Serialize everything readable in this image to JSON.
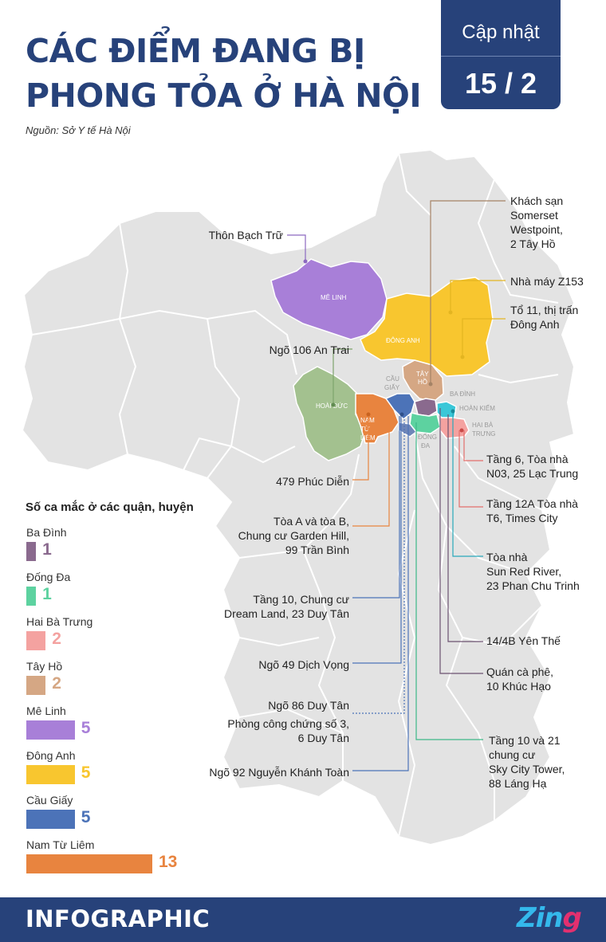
{
  "header": {
    "title_line1": "CÁC ĐIỂM ĐANG BỊ",
    "title_line2": "PHONG TỎA Ở HÀ NỘI",
    "source": "Nguồn: Sở Y tế Hà Nội",
    "badge_label": "Cập nhật",
    "badge_date": "15 / 2"
  },
  "map": {
    "districts": {
      "me_linh": "MÊ LINH",
      "dong_anh": "ĐÔNG ANH",
      "tay_ho_1": "TÂY",
      "tay_ho_2": "HỒ",
      "cau_giay_1": "CẦU",
      "cau_giay_2": "GIẤY",
      "ba_dinh": "BA ĐÌNH",
      "hoan_kiem": "HOÀN KIẾM",
      "hoai_duc": "HOÀI ĐỨC",
      "nam_tu_liem_1": "NAM",
      "nam_tu_liem_2": "TỪ",
      "nam_tu_liem_3": "LIÊM",
      "dong_da_1": "ĐỐNG",
      "dong_da_2": "ĐA",
      "hai_ba_trung_1": "HAI BÀ",
      "hai_ba_trung_2": "TRƯNG"
    },
    "colors": {
      "me_linh": "#a87fd8",
      "dong_anh": "#f8c62f",
      "tay_ho": "#d5a784",
      "ba_dinh": "#8a6a8e",
      "dong_da": "#5dd2a0",
      "hai_ba_trung": "#f4a2a0",
      "cau_giay": "#4c73b8",
      "nam_tu_liem": "#e8843f",
      "hoai_duc": "#a3c18f",
      "hoan_kiem": "#3ac7d8",
      "land": "#e3e3e3"
    },
    "locations": [
      "Khách sạn Somerset Westpoint, 2 Tây Hồ",
      "Nhà máy Z153",
      "Tổ 11, thị trấn Đông Anh",
      "Thôn Bạch Trữ",
      "Ngõ 106 An Trai",
      "479 Phúc Diễn",
      "Tòa A và tòa B, Chung cư Garden Hill, 99 Trần Bình",
      "Tầng 10, Chung cư Dream Land, 23 Duy Tân",
      "Ngõ 49 Dịch Vọng",
      "Ngõ 86 Duy Tân",
      "Phòng công chứng số 3, 6 Duy Tân",
      "Ngõ 92 Nguyễn Khánh Toàn",
      "Tầng 6, Tòa nhà N03, 25 Lạc Trung",
      "Tầng 12A Tòa nhà T6, Times City",
      "Tòa nhà Sun Red River, 23 Phan Chu Trinh",
      "14/4B Yên Thế",
      "Quán cà phê, 10 Khúc Hạo",
      "Tầng 10 và 21 chung cư Sky City Tower, 88 Láng Hạ"
    ],
    "label_lines": {
      "somerset": [
        "Khách sạn",
        "Somerset",
        "Westpoint,",
        "2 Tây Hồ"
      ],
      "z153": [
        "Nhà máy Z153"
      ],
      "to11": [
        "Tổ 11, thị trấn",
        "Đông Anh"
      ],
      "bachtru": [
        "Thôn Bạch Trữ"
      ],
      "antrai": [
        "Ngõ 106 An Trai"
      ],
      "phucdien": [
        "479 Phúc Diễn"
      ],
      "gardenhill": [
        "Tòa A và tòa B,",
        "Chung cư Garden Hill,",
        "99 Trần Bình"
      ],
      "dreamland": [
        "Tầng 10, Chung cư",
        "Dream Land, 23 Duy Tân"
      ],
      "dichvong": [
        "Ngõ 49 Dịch Vọng"
      ],
      "duytan86": [
        "Ngõ 86 Duy Tân"
      ],
      "congchung": [
        "Phòng công chứng số 3,",
        "6 Duy Tân"
      ],
      "nkt": [
        "Ngõ 92 Nguyễn Khánh Toàn"
      ],
      "lactrung": [
        "Tầng 6, Tòa nhà",
        "N03, 25 Lạc Trung"
      ],
      "timescity": [
        "Tầng 12A Tòa nhà",
        "T6, Times City"
      ],
      "sunred": [
        "Tòa nhà",
        "Sun Red River,",
        "23 Phan Chu Trinh"
      ],
      "yenthe": [
        "14/4B Yên Thế"
      ],
      "khuchao": [
        "Quán cà phê,",
        "10 Khúc Hạo"
      ],
      "skycity": [
        "Tầng 10 và 21",
        "chung cư",
        "Sky City Tower,",
        "88 Láng Hạ"
      ]
    }
  },
  "legend": {
    "title": "Số ca mắc ở các quận, huyện",
    "max": 13,
    "items": [
      {
        "name": "Ba Đình",
        "value": 1,
        "color": "#8a6a8e"
      },
      {
        "name": "Đống Đa",
        "value": 1,
        "color": "#5dd2a0"
      },
      {
        "name": "Hai Bà Trưng",
        "value": 2,
        "color": "#f4a2a0"
      },
      {
        "name": "Tây Hồ",
        "value": 2,
        "color": "#d5a784"
      },
      {
        "name": "Mê Linh",
        "value": 5,
        "color": "#a87fd8"
      },
      {
        "name": "Đông Anh",
        "value": 5,
        "color": "#f8c62f"
      },
      {
        "name": "Cầu Giấy",
        "value": 5,
        "color": "#4c73b8"
      },
      {
        "name": "Nam Từ Liêm",
        "value": 13,
        "color": "#e8843f"
      }
    ]
  },
  "footer": {
    "brand": "INFOGRAPHIC",
    "logo_a": "Zin",
    "logo_b": "g"
  }
}
